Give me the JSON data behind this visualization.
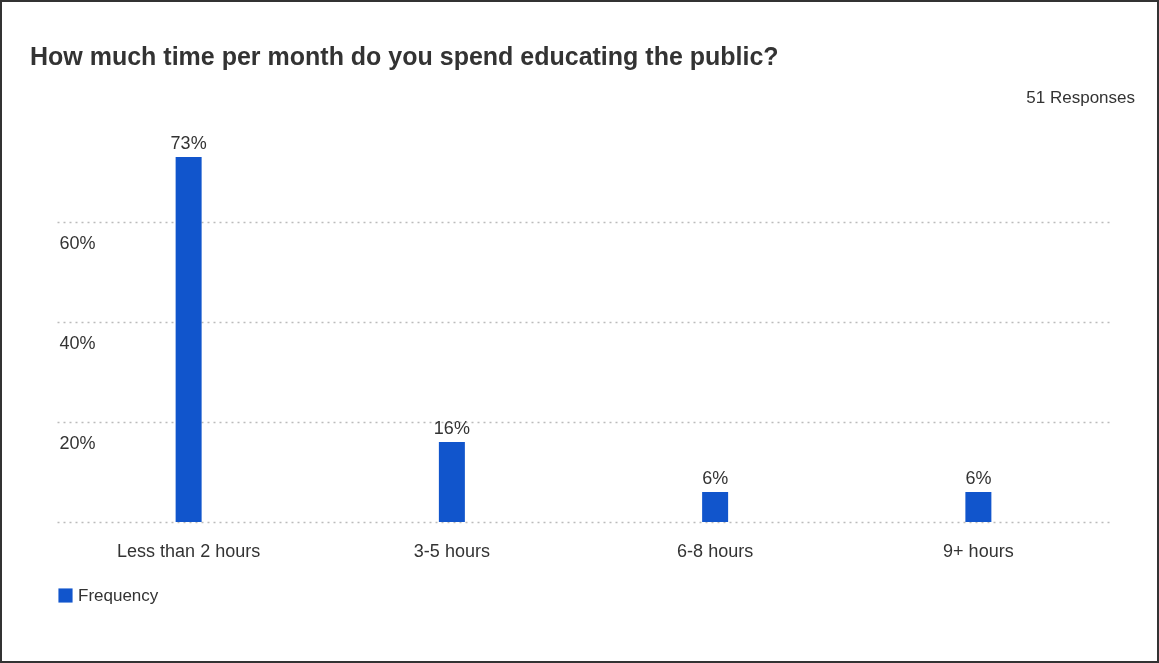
{
  "chart_data": {
    "type": "bar",
    "title": "How much time per month do you spend educating the public?",
    "annotations": [
      "51 Responses"
    ],
    "categories": [
      "Less than 2 hours",
      "3-5 hours",
      "6-8 hours",
      "9+ hours"
    ],
    "series": [
      {
        "name": "Frequency",
        "color": "#1155cc",
        "values": [
          73,
          16,
          6,
          6
        ],
        "value_labels": [
          "73%",
          "16%",
          "6%",
          "6%"
        ]
      }
    ],
    "yticks": [
      {
        "value": 0,
        "label": null
      },
      {
        "value": 20,
        "label": "20%"
      },
      {
        "value": 40,
        "label": "40%"
      },
      {
        "value": 60,
        "label": "60%"
      }
    ],
    "ylim": [
      0,
      73
    ],
    "grid": "y",
    "legend": "bottom left"
  }
}
